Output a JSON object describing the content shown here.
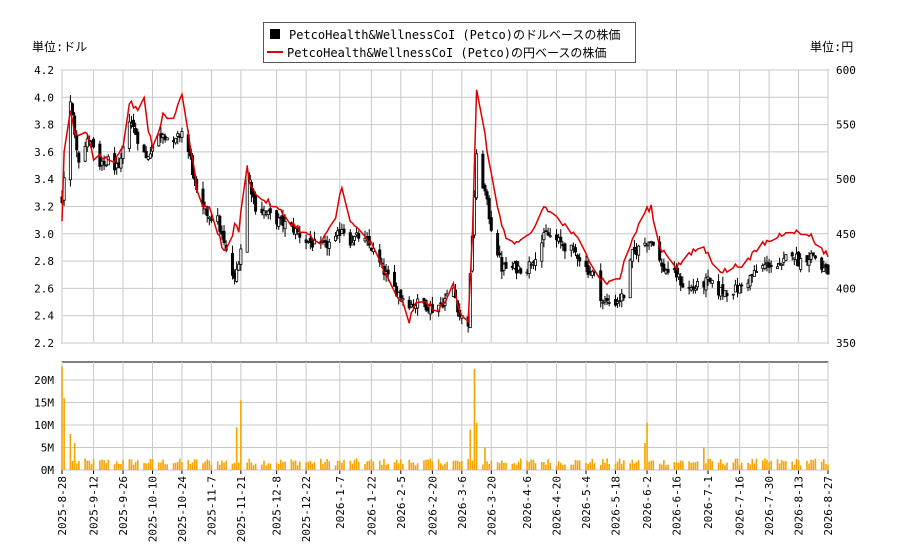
{
  "chart_data": [
    {
      "type": "candlestick",
      "legend": [
        {
          "label": "PetcoHealth&WellnessCoI (Petco)のドルベースの株価",
          "color": "#000000",
          "marker": "square"
        },
        {
          "label": "PetcoHealth&WellnessCoI (Petco)の円ベースの株価",
          "color": "#dd0000",
          "marker": "line"
        }
      ],
      "left_unit": "単位:ドル",
      "right_unit": "単位:円",
      "left_ylim": [
        2.2,
        4.2
      ],
      "left_ticks": [
        "2.2",
        "2.4",
        "2.6",
        "2.8",
        "3.0",
        "3.2",
        "3.4",
        "3.6",
        "3.8",
        "4.0",
        "4.2"
      ],
      "right_ylim": [
        350,
        600
      ],
      "right_ticks": [
        "350",
        "400",
        "450",
        "500",
        "550",
        "600"
      ],
      "grid": true,
      "x_start": "2025-08-28",
      "x_end": "2026-08-27",
      "x_ticks": [
        "2025-8-28",
        "2025-9-12",
        "2025-9-26",
        "2025-10-10",
        "2025-10-24",
        "2025-11-7",
        "2025-11-21",
        "2025-12-8",
        "2025-12-22",
        "2026-1-7",
        "2026-1-22",
        "2026-2-5",
        "2026-2-20",
        "2026-3-6",
        "2026-3-20",
        "2026-4-6",
        "2026-4-20",
        "2026-5-4",
        "2026-5-18",
        "2026-6-2",
        "2026-6-16",
        "2026-7-1",
        "2026-7-16",
        "2026-7-30",
        "2026-8-13",
        "2026-8-27"
      ],
      "usd_close_path": [
        [
          "2025-08-28",
          3.25
        ],
        [
          "2025-09-01",
          3.95
        ],
        [
          "2025-09-05",
          3.55
        ],
        [
          "2025-09-10",
          3.7
        ],
        [
          "2025-09-15",
          3.48
        ],
        [
          "2025-09-20",
          3.55
        ],
        [
          "2025-09-24",
          3.45
        ],
        [
          "2025-09-29",
          3.85
        ],
        [
          "2025-10-03",
          3.7
        ],
        [
          "2025-10-07",
          3.55
        ],
        [
          "2025-10-10",
          3.65
        ],
        [
          "2025-10-15",
          3.75
        ],
        [
          "2025-10-20",
          3.65
        ],
        [
          "2025-10-24",
          3.75
        ],
        [
          "2025-10-28",
          3.55
        ],
        [
          "2025-11-01",
          3.2
        ],
        [
          "2025-11-05",
          3.15
        ],
        [
          "2025-11-10",
          3.1
        ],
        [
          "2025-11-15",
          2.8
        ],
        [
          "2025-11-18",
          2.65
        ],
        [
          "2025-11-21",
          2.9
        ],
        [
          "2025-11-24",
          3.45
        ],
        [
          "2025-11-28",
          3.2
        ],
        [
          "2025-12-03",
          3.15
        ],
        [
          "2025-12-08",
          3.1
        ],
        [
          "2025-12-15",
          3.05
        ],
        [
          "2025-12-22",
          2.95
        ],
        [
          "2025-12-29",
          2.9
        ],
        [
          "2026-01-05",
          2.95
        ],
        [
          "2026-01-08",
          3.05
        ],
        [
          "2026-01-12",
          2.95
        ],
        [
          "2026-01-16",
          2.98
        ],
        [
          "2026-01-22",
          2.9
        ],
        [
          "2026-01-27",
          2.75
        ],
        [
          "2026-02-02",
          2.6
        ],
        [
          "2026-02-05",
          2.55
        ],
        [
          "2026-02-10",
          2.48
        ],
        [
          "2026-02-15",
          2.5
        ],
        [
          "2026-02-20",
          2.45
        ],
        [
          "2026-02-25",
          2.5
        ],
        [
          "2026-03-02",
          2.6
        ],
        [
          "2026-03-05",
          2.4
        ],
        [
          "2026-03-09",
          2.35
        ],
        [
          "2026-03-11",
          3.0
        ],
        [
          "2026-03-13",
          3.55
        ],
        [
          "2026-03-17",
          3.3
        ],
        [
          "2026-03-20",
          3.05
        ],
        [
          "2026-03-25",
          2.75
        ],
        [
          "2026-03-30",
          2.75
        ],
        [
          "2026-04-06",
          2.75
        ],
        [
          "2026-04-10",
          2.85
        ],
        [
          "2026-04-15",
          3.0
        ],
        [
          "2026-04-20",
          2.95
        ],
        [
          "2026-04-25",
          2.9
        ],
        [
          "2026-04-30",
          2.85
        ],
        [
          "2026-05-04",
          2.75
        ],
        [
          "2026-05-08",
          2.7
        ],
        [
          "2026-05-12",
          2.5
        ],
        [
          "2026-05-18",
          2.5
        ],
        [
          "2026-05-22",
          2.55
        ],
        [
          "2026-05-26",
          2.85
        ],
        [
          "2026-06-02",
          2.95
        ],
        [
          "2026-06-05",
          2.95
        ],
        [
          "2026-06-09",
          2.75
        ],
        [
          "2026-06-16",
          2.7
        ],
        [
          "2026-06-20",
          2.6
        ],
        [
          "2026-06-24",
          2.6
        ],
        [
          "2026-07-01",
          2.65
        ],
        [
          "2026-07-06",
          2.58
        ],
        [
          "2026-07-11",
          2.58
        ],
        [
          "2026-07-16",
          2.6
        ],
        [
          "2026-07-21",
          2.68
        ],
        [
          "2026-07-26",
          2.75
        ],
        [
          "2026-07-30",
          2.78
        ],
        [
          "2026-08-05",
          2.75
        ],
        [
          "2026-08-09",
          2.9
        ],
        [
          "2026-08-13",
          2.8
        ],
        [
          "2026-08-20",
          2.85
        ],
        [
          "2026-08-24",
          2.75
        ],
        [
          "2026-08-27",
          2.72
        ]
      ],
      "jpy_close_path": [
        [
          "2025-08-28",
          460
        ],
        [
          "2025-08-30",
          585
        ],
        [
          "2025-09-03",
          540
        ],
        [
          "2025-09-08",
          545
        ],
        [
          "2025-09-12",
          520
        ],
        [
          "2025-09-17",
          520
        ],
        [
          "2025-09-21",
          510
        ],
        [
          "2025-09-26",
          530
        ],
        [
          "2025-09-29",
          570
        ],
        [
          "2025-10-03",
          565
        ],
        [
          "2025-10-06",
          575
        ],
        [
          "2025-10-08",
          545
        ],
        [
          "2025-10-11",
          525
        ],
        [
          "2025-10-15",
          560
        ],
        [
          "2025-10-20",
          555
        ],
        [
          "2025-10-24",
          580
        ],
        [
          "2025-10-28",
          530
        ],
        [
          "2025-11-01",
          480
        ],
        [
          "2025-11-07",
          470
        ],
        [
          "2025-11-12",
          440
        ],
        [
          "2025-11-15",
          430
        ],
        [
          "2025-11-18",
          460
        ],
        [
          "2025-11-20",
          450
        ],
        [
          "2025-11-23",
          520
        ],
        [
          "2025-11-25",
          500
        ],
        [
          "2025-11-28",
          485
        ],
        [
          "2025-12-03",
          480
        ],
        [
          "2025-12-10",
          470
        ],
        [
          "2025-12-15",
          460
        ],
        [
          "2025-12-22",
          450
        ],
        [
          "2025-12-29",
          440
        ],
        [
          "2026-01-05",
          465
        ],
        [
          "2026-01-08",
          495
        ],
        [
          "2026-01-12",
          460
        ],
        [
          "2026-01-18",
          450
        ],
        [
          "2026-01-22",
          440
        ],
        [
          "2026-01-27",
          420
        ],
        [
          "2026-02-02",
          395
        ],
        [
          "2026-02-05",
          390
        ],
        [
          "2026-02-09",
          370
        ],
        [
          "2026-02-13",
          390
        ],
        [
          "2026-02-18",
          385
        ],
        [
          "2026-02-23",
          380
        ],
        [
          "2026-02-27",
          390
        ],
        [
          "2026-03-02",
          405
        ],
        [
          "2026-03-05",
          380
        ],
        [
          "2026-03-09",
          370
        ],
        [
          "2026-03-11",
          450
        ],
        [
          "2026-03-13",
          580
        ],
        [
          "2026-03-17",
          540
        ],
        [
          "2026-03-21",
          490
        ],
        [
          "2026-03-27",
          445
        ],
        [
          "2026-04-02",
          440
        ],
        [
          "2026-04-08",
          450
        ],
        [
          "2026-04-14",
          475
        ],
        [
          "2026-04-20",
          465
        ],
        [
          "2026-04-25",
          455
        ],
        [
          "2026-04-30",
          445
        ],
        [
          "2026-05-05",
          430
        ],
        [
          "2026-05-10",
          410
        ],
        [
          "2026-05-15",
          405
        ],
        [
          "2026-05-20",
          410
        ],
        [
          "2026-05-25",
          440
        ],
        [
          "2026-06-01",
          470
        ],
        [
          "2026-06-04",
          475
        ],
        [
          "2026-06-07",
          440
        ],
        [
          "2026-06-12",
          430
        ],
        [
          "2026-06-16",
          420
        ],
        [
          "2026-06-22",
          430
        ],
        [
          "2026-06-28",
          440
        ],
        [
          "2026-07-03",
          425
        ],
        [
          "2026-07-08",
          415
        ],
        [
          "2026-07-14",
          420
        ],
        [
          "2026-07-20",
          425
        ],
        [
          "2026-07-26",
          440
        ],
        [
          "2026-08-01",
          445
        ],
        [
          "2026-08-05",
          450
        ],
        [
          "2026-08-09",
          455
        ],
        [
          "2026-08-13",
          450
        ],
        [
          "2026-08-18",
          450
        ],
        [
          "2026-08-22",
          440
        ],
        [
          "2026-08-27",
          430
        ]
      ],
      "series": [
        {
          "name": "PetcoHealth&WellnessCoI (Petco)のドルベースの株価",
          "kind": "candles",
          "color": "#000000"
        },
        {
          "name": "PetcoHealth&WellnessCoI (Petco)の円ベースの株価",
          "kind": "line",
          "color": "#dd0000"
        }
      ]
    },
    {
      "type": "bar",
      "y_ticks": [
        "0M",
        "5M",
        "10M",
        "15M",
        "20M"
      ],
      "ylim": [
        0,
        24
      ],
      "unit": "M",
      "bar_color": "#f5a500",
      "volume_spikes_M": [
        [
          "2025-08-28",
          23
        ],
        [
          "2025-08-29",
          16
        ],
        [
          "2025-09-01",
          8
        ],
        [
          "2025-09-03",
          6
        ],
        [
          "2025-11-19",
          9.5
        ],
        [
          "2025-11-21",
          15.5
        ],
        [
          "2026-03-10",
          9
        ],
        [
          "2026-03-12",
          22.5
        ],
        [
          "2026-03-13",
          10.5
        ],
        [
          "2026-03-17",
          5
        ],
        [
          "2026-06-01",
          6
        ],
        [
          "2026-06-02",
          10.5
        ],
        [
          "2026-06-29",
          5
        ]
      ],
      "volume_baseline_M": 2
    }
  ]
}
